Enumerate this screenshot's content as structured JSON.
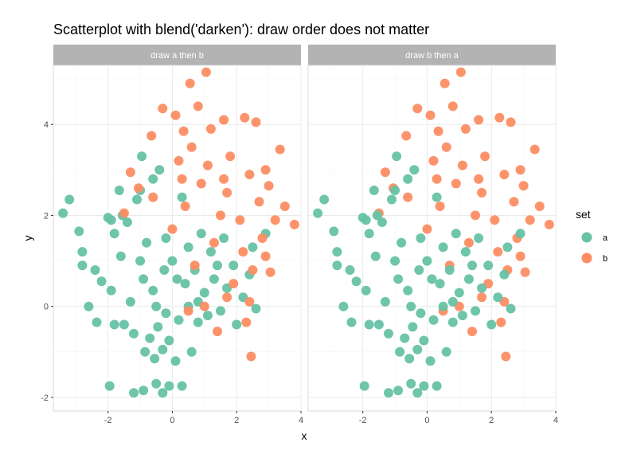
{
  "chart_data": {
    "type": "scatter",
    "title": "Scatterplot with blend('darken'): draw order does not matter",
    "xlabel": "x",
    "ylabel": "y",
    "xlim": [
      -3.7,
      4.0
    ],
    "ylim": [
      -2.3,
      5.3
    ],
    "x_ticks": [
      -2,
      0,
      2,
      4
    ],
    "y_ticks": [
      -2,
      0,
      2,
      4
    ],
    "grid": true,
    "legend": {
      "title": "set",
      "position": "right",
      "entries": [
        {
          "label": "a",
          "color": "#66C2A5"
        },
        {
          "label": "b",
          "color": "#FC8D62"
        }
      ]
    },
    "blend_color": "#5f8160",
    "panels": [
      {
        "strip_label": "draw a then b"
      },
      {
        "strip_label": "draw b then a"
      }
    ],
    "series": [
      {
        "name": "a",
        "color": "#66C2A5",
        "points": [
          [
            -3.4,
            2.05
          ],
          [
            -3.2,
            2.35
          ],
          [
            -2.9,
            1.65
          ],
          [
            -2.8,
            1.2
          ],
          [
            -2.8,
            0.9
          ],
          [
            -2.6,
            0.0
          ],
          [
            -2.4,
            0.8
          ],
          [
            -2.35,
            -0.35
          ],
          [
            -2.2,
            0.55
          ],
          [
            -2.0,
            1.95
          ],
          [
            -1.9,
            1.9
          ],
          [
            -1.9,
            0.35
          ],
          [
            -1.8,
            -0.4
          ],
          [
            -1.8,
            1.6
          ],
          [
            -1.65,
            2.55
          ],
          [
            -1.55,
            2.0
          ],
          [
            -1.5,
            -0.4
          ],
          [
            -1.4,
            1.85
          ],
          [
            -1.3,
            0.1
          ],
          [
            -1.2,
            -0.6
          ],
          [
            -1.1,
            2.35
          ],
          [
            -1.0,
            2.55
          ],
          [
            -0.95,
            3.3
          ],
          [
            -0.9,
            0.6
          ],
          [
            -0.85,
            -1.0
          ],
          [
            -0.8,
            1.4
          ],
          [
            -0.7,
            -0.7
          ],
          [
            -0.6,
            2.8
          ],
          [
            -0.55,
            -1.15
          ],
          [
            -0.5,
            0.0
          ],
          [
            -0.45,
            -0.45
          ],
          [
            -0.4,
            3.0
          ],
          [
            -0.3,
            -0.95
          ],
          [
            -0.25,
            0.8
          ],
          [
            -0.2,
            -0.15
          ],
          [
            -0.1,
            -0.75
          ],
          [
            0.0,
            1.0
          ],
          [
            0.1,
            -1.2
          ],
          [
            0.2,
            -0.3
          ],
          [
            0.3,
            2.4
          ],
          [
            0.4,
            0.5
          ],
          [
            0.5,
            0.0
          ],
          [
            0.6,
            -1.0
          ],
          [
            0.7,
            0.8
          ],
          [
            0.8,
            -0.35
          ],
          [
            0.9,
            1.6
          ],
          [
            1.0,
            0.3
          ],
          [
            1.1,
            -0.2
          ],
          [
            1.2,
            1.2
          ],
          [
            1.3,
            0.6
          ],
          [
            1.5,
            -0.1
          ],
          [
            1.6,
            1.5
          ],
          [
            1.7,
            0.4
          ],
          [
            1.9,
            0.9
          ],
          [
            2.0,
            -0.4
          ],
          [
            2.2,
            0.2
          ],
          [
            2.4,
            0.7
          ],
          [
            2.5,
            1.3
          ],
          [
            2.6,
            -0.05
          ],
          [
            -0.1,
            -1.75
          ],
          [
            -0.3,
            -1.9
          ],
          [
            -0.5,
            -1.7
          ],
          [
            -0.9,
            -1.85
          ],
          [
            -1.2,
            -1.9
          ],
          [
            0.3,
            -1.75
          ],
          [
            -1.95,
            -1.75
          ],
          [
            -0.6,
            0.35
          ],
          [
            0.15,
            0.6
          ],
          [
            -1.0,
            1.0
          ],
          [
            0.8,
            0.1
          ],
          [
            1.4,
            0.9
          ],
          [
            -0.2,
            1.5
          ],
          [
            0.5,
            1.3
          ],
          [
            -1.6,
            1.1
          ],
          [
            2.9,
            1.6
          ]
        ]
      },
      {
        "name": "b",
        "color": "#FC8D62",
        "points": [
          [
            0.55,
            4.9
          ],
          [
            1.05,
            5.15
          ],
          [
            0.1,
            4.2
          ],
          [
            0.8,
            4.4
          ],
          [
            1.6,
            4.1
          ],
          [
            -0.3,
            4.35
          ],
          [
            0.35,
            3.85
          ],
          [
            1.2,
            3.9
          ],
          [
            2.25,
            4.15
          ],
          [
            2.6,
            4.05
          ],
          [
            -0.65,
            3.75
          ],
          [
            3.35,
            3.45
          ],
          [
            0.6,
            3.5
          ],
          [
            1.8,
            3.3
          ],
          [
            2.9,
            3.0
          ],
          [
            -1.3,
            2.95
          ],
          [
            0.2,
            3.2
          ],
          [
            1.1,
            3.1
          ],
          [
            2.4,
            2.9
          ],
          [
            3.0,
            2.65
          ],
          [
            -1.05,
            2.6
          ],
          [
            0.9,
            2.7
          ],
          [
            1.7,
            2.5
          ],
          [
            2.7,
            2.3
          ],
          [
            3.5,
            2.2
          ],
          [
            3.8,
            1.8
          ],
          [
            3.2,
            1.9
          ],
          [
            2.8,
            1.5
          ],
          [
            -0.6,
            2.4
          ],
          [
            0.4,
            2.2
          ],
          [
            1.5,
            2.0
          ],
          [
            2.2,
            1.2
          ],
          [
            2.9,
            1.1
          ],
          [
            -1.5,
            2.05
          ],
          [
            0.0,
            1.7
          ],
          [
            1.3,
            1.4
          ],
          [
            2.5,
            0.8
          ],
          [
            3.05,
            0.75
          ],
          [
            0.7,
            0.9
          ],
          [
            1.9,
            0.5
          ],
          [
            2.4,
            0.1
          ],
          [
            2.3,
            -0.35
          ],
          [
            2.45,
            -1.1
          ],
          [
            1.4,
            -0.55
          ],
          [
            1.0,
            0.0
          ],
          [
            0.5,
            -0.1
          ],
          [
            1.7,
            0.2
          ],
          [
            2.1,
            1.9
          ],
          [
            0.3,
            2.8
          ],
          [
            1.6,
            2.8
          ]
        ]
      }
    ]
  }
}
